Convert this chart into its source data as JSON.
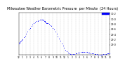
{
  "title": "Milwaukee Weather Barometric Pressure  per Minute  (24 Hours)",
  "title_fontsize": 3.5,
  "bg_color": "#ffffff",
  "plot_bg_color": "#ffffff",
  "dot_color": "#0000ff",
  "dot_size": 0.4,
  "legend_box_color": "#0000ff",
  "ylim": [
    28.6,
    30.25
  ],
  "xlim": [
    0,
    1440
  ],
  "ytick_labels": [
    "29.0",
    "29.2",
    "29.4",
    "29.6",
    "29.8",
    "30.0",
    "30.2"
  ],
  "ytick_values": [
    29.0,
    29.2,
    29.4,
    29.6,
    29.8,
    30.0,
    30.2
  ],
  "xtick_positions": [
    0,
    60,
    120,
    180,
    240,
    300,
    360,
    420,
    480,
    540,
    600,
    660,
    720,
    780,
    840,
    900,
    960,
    1020,
    1080,
    1140,
    1200,
    1260,
    1320,
    1380,
    1440
  ],
  "xtick_labels": [
    "12",
    "1",
    "2",
    "3",
    "4",
    "5",
    "6",
    "7",
    "8",
    "9",
    "10",
    "11",
    "12",
    "1",
    "2",
    "3",
    "4",
    "5",
    "6",
    "7",
    "8",
    "9",
    "10",
    "11",
    "12"
  ],
  "vgrid_positions": [
    60,
    120,
    180,
    240,
    300,
    360,
    420,
    480,
    540,
    600,
    660,
    720,
    780,
    840,
    900,
    960,
    1020,
    1080,
    1140,
    1200,
    1260,
    1320,
    1380
  ],
  "pressure_data": [
    [
      0,
      29.05
    ],
    [
      10,
      29.08
    ],
    [
      20,
      29.1
    ],
    [
      30,
      29.12
    ],
    [
      40,
      29.15
    ],
    [
      50,
      29.17
    ],
    [
      60,
      29.2
    ],
    [
      80,
      29.28
    ],
    [
      100,
      29.35
    ],
    [
      120,
      29.42
    ],
    [
      140,
      29.5
    ],
    [
      160,
      29.58
    ],
    [
      180,
      29.65
    ],
    [
      200,
      29.72
    ],
    [
      220,
      29.78
    ],
    [
      240,
      29.83
    ],
    [
      260,
      29.87
    ],
    [
      280,
      29.9
    ],
    [
      300,
      29.92
    ],
    [
      320,
      29.95
    ],
    [
      340,
      29.97
    ],
    [
      360,
      29.98
    ],
    [
      370,
      29.98
    ],
    [
      380,
      29.96
    ],
    [
      390,
      29.94
    ],
    [
      400,
      29.92
    ],
    [
      410,
      29.9
    ],
    [
      420,
      29.88
    ],
    [
      430,
      29.86
    ],
    [
      440,
      29.84
    ],
    [
      450,
      29.83
    ],
    [
      460,
      29.82
    ],
    [
      480,
      29.8
    ],
    [
      500,
      29.76
    ],
    [
      520,
      29.72
    ],
    [
      540,
      29.65
    ],
    [
      560,
      29.58
    ],
    [
      580,
      29.5
    ],
    [
      600,
      29.42
    ],
    [
      620,
      29.33
    ],
    [
      640,
      29.24
    ],
    [
      660,
      29.15
    ],
    [
      680,
      29.05
    ],
    [
      700,
      28.96
    ],
    [
      720,
      28.88
    ],
    [
      740,
      28.8
    ],
    [
      760,
      28.74
    ],
    [
      780,
      28.7
    ],
    [
      800,
      28.67
    ],
    [
      820,
      28.65
    ],
    [
      840,
      28.64
    ],
    [
      860,
      28.64
    ],
    [
      880,
      28.65
    ],
    [
      900,
      28.67
    ],
    [
      920,
      28.68
    ],
    [
      940,
      28.69
    ],
    [
      960,
      28.7
    ],
    [
      980,
      28.71
    ],
    [
      1000,
      28.72
    ],
    [
      1020,
      28.73
    ],
    [
      1040,
      28.73
    ],
    [
      1060,
      28.72
    ],
    [
      1080,
      28.71
    ],
    [
      1100,
      28.7
    ],
    [
      1120,
      28.69
    ],
    [
      1140,
      28.68
    ],
    [
      1160,
      28.67
    ],
    [
      1180,
      28.66
    ],
    [
      1200,
      28.65
    ],
    [
      1220,
      28.64
    ],
    [
      1240,
      28.63
    ],
    [
      1260,
      28.62
    ],
    [
      1280,
      28.61
    ],
    [
      1300,
      28.61
    ],
    [
      1320,
      28.62
    ],
    [
      1340,
      28.63
    ],
    [
      1360,
      28.64
    ],
    [
      1380,
      28.65
    ],
    [
      1400,
      28.66
    ],
    [
      1420,
      28.67
    ],
    [
      1440,
      28.68
    ]
  ]
}
